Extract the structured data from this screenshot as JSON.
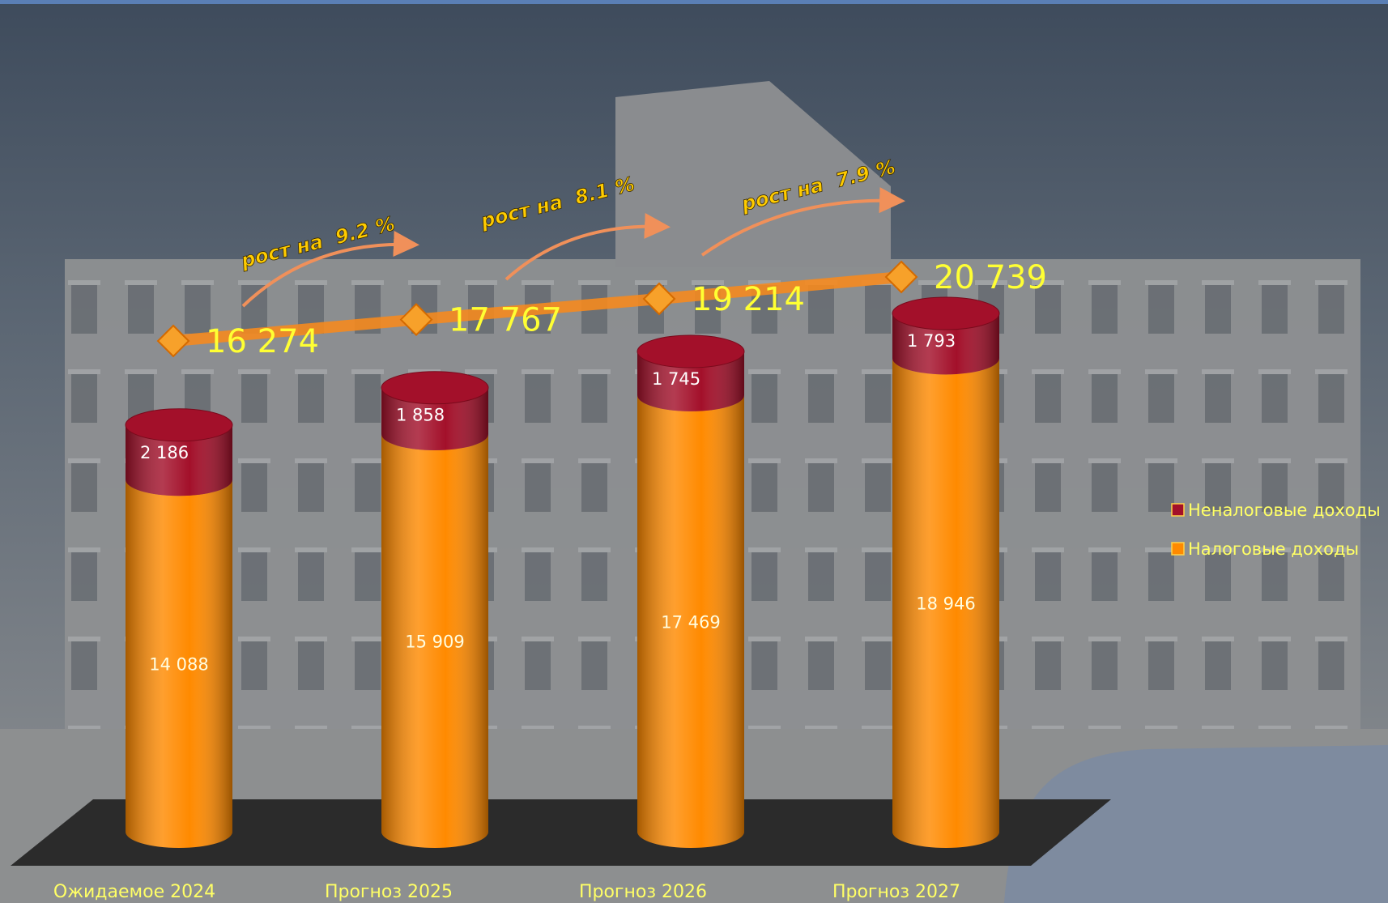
{
  "chart_data": {
    "type": "stacked-cylinder",
    "categories": [
      "Ожидаемое 2024",
      "Прогноз 2025",
      "Прогноз 2026",
      "Прогноз 2027"
    ],
    "series": [
      {
        "name": "Налоговые доходы",
        "color": "#ff8a00",
        "values": [
          14088,
          15909,
          17469,
          18946
        ],
        "value_labels": [
          "14 088",
          "15 909",
          "17 469",
          "18 946"
        ]
      },
      {
        "name": "Неналоговые доходы",
        "color": "#a3102a",
        "values": [
          2186,
          1858,
          1745,
          1793
        ],
        "value_labels": [
          "2 186",
          "1 858",
          "1 745",
          "1 793"
        ]
      }
    ],
    "totals": {
      "color": "#f58a1f",
      "values": [
        16274,
        17767,
        19214,
        20739
      ],
      "value_labels": [
        "16 274",
        "17 767",
        "19 214",
        "20 739"
      ]
    },
    "annotations": [
      "рост на  9.2 %",
      "рост на  8.1 %",
      "рост на  7.9 %"
    ]
  }
}
